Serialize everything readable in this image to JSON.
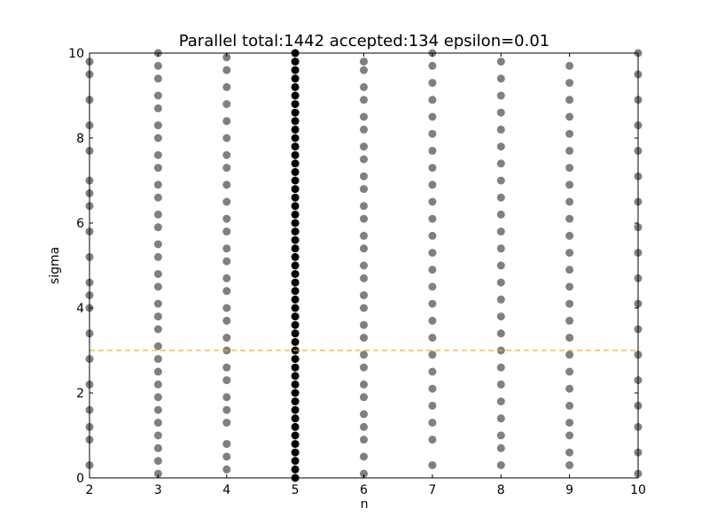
{
  "chart_data": {
    "type": "scatter",
    "title": "Parallel total:1442 accepted:134 epsilon=0.01",
    "xlabel": "n",
    "ylabel": "sigma",
    "xlim": [
      2,
      10
    ],
    "ylim": [
      0,
      10
    ],
    "xticks": [
      "2",
      "3",
      "4",
      "5",
      "6",
      "7",
      "8",
      "9",
      "10"
    ],
    "yticks": [
      "0",
      "2",
      "4",
      "6",
      "8",
      "10"
    ],
    "grid": false,
    "legend": "none",
    "reference_line": {
      "orientation": "horizontal",
      "y": 3,
      "style": "dashed",
      "color": "#e6b422"
    },
    "colors": {
      "rejected": "#808080",
      "accepted": "#000000"
    },
    "series": [
      {
        "marker": "circle",
        "color": "#808080",
        "points": {
          "2": [
            0.3,
            0.9,
            1.6,
            2.2,
            2.8,
            3.4,
            4.0,
            4.6,
            5.2,
            5.8,
            6.4,
            7.0,
            7.7,
            8.3,
            8.9,
            9.5,
            1.2,
            4.3,
            6.7,
            9.8
          ],
          "3": [
            0.1,
            0.4,
            0.7,
            1.0,
            1.3,
            1.6,
            1.9,
            2.2,
            2.5,
            2.8,
            3.1,
            3.5,
            3.8,
            4.1,
            4.5,
            4.8,
            5.2,
            5.5,
            5.9,
            6.2,
            6.6,
            6.9,
            7.3,
            7.6,
            8.0,
            8.3,
            8.7,
            9.0,
            9.4,
            9.7,
            10.0
          ],
          "4": [
            0.2,
            0.5,
            0.8,
            1.3,
            1.6,
            1.9,
            2.3,
            2.6,
            3.0,
            3.3,
            3.7,
            4.0,
            4.4,
            4.7,
            5.1,
            5.4,
            5.8,
            6.1,
            6.5,
            6.9,
            7.3,
            7.6,
            8.0,
            8.4,
            8.8,
            9.2,
            9.6,
            9.9
          ],
          "6": [
            0.1,
            0.5,
            0.9,
            1.2,
            1.5,
            1.9,
            2.2,
            2.6,
            2.9,
            3.3,
            3.6,
            4.0,
            4.3,
            4.7,
            5.0,
            5.4,
            5.7,
            6.1,
            6.4,
            6.8,
            7.1,
            7.5,
            7.8,
            8.2,
            8.5,
            8.9,
            9.2,
            9.6,
            9.8
          ],
          "7": [
            0.3,
            0.9,
            1.3,
            1.7,
            2.1,
            2.5,
            2.9,
            3.3,
            3.7,
            4.1,
            4.5,
            4.9,
            5.3,
            5.7,
            6.1,
            6.5,
            6.9,
            7.3,
            7.7,
            8.1,
            8.5,
            8.9,
            9.3,
            9.7,
            10.0
          ],
          "8": [
            0.3,
            0.7,
            1.0,
            1.4,
            1.8,
            2.2,
            2.6,
            3.0,
            3.4,
            3.8,
            4.2,
            4.6,
            5.0,
            5.4,
            5.8,
            6.2,
            6.6,
            7.0,
            7.4,
            7.8,
            8.2,
            8.6,
            9.0,
            9.4,
            9.8
          ],
          "9": [
            0.3,
            0.6,
            1.0,
            1.3,
            1.7,
            2.1,
            2.5,
            2.9,
            3.3,
            3.7,
            4.1,
            4.5,
            4.9,
            5.3,
            5.7,
            6.1,
            6.5,
            6.9,
            7.3,
            7.7,
            8.1,
            8.5,
            8.9,
            9.3,
            9.7
          ],
          "10": [
            0.1,
            0.6,
            1.2,
            1.7,
            2.3,
            2.9,
            3.5,
            4.1,
            4.7,
            5.3,
            5.9,
            6.5,
            7.1,
            7.7,
            8.3,
            8.9,
            9.5,
            10.0
          ]
        }
      },
      {
        "marker": "circle",
        "color": "#000000",
        "points": {
          "5": [
            0.0,
            0.2,
            0.4,
            0.6,
            0.8,
            1.0,
            1.2,
            1.4,
            1.6,
            1.8,
            2.0,
            2.2,
            2.4,
            2.6,
            2.8,
            3.0,
            3.2,
            3.4,
            3.6,
            3.8,
            4.0,
            4.2,
            4.4,
            4.6,
            4.8,
            5.0,
            5.2,
            5.4,
            5.6,
            5.8,
            6.0,
            6.2,
            6.4,
            6.6,
            6.8,
            7.0,
            7.2,
            7.4,
            7.6,
            7.8,
            8.0,
            8.2,
            8.4,
            8.6,
            8.8,
            9.0,
            9.2,
            9.4,
            9.6,
            9.8,
            10.0
          ]
        }
      }
    ]
  }
}
